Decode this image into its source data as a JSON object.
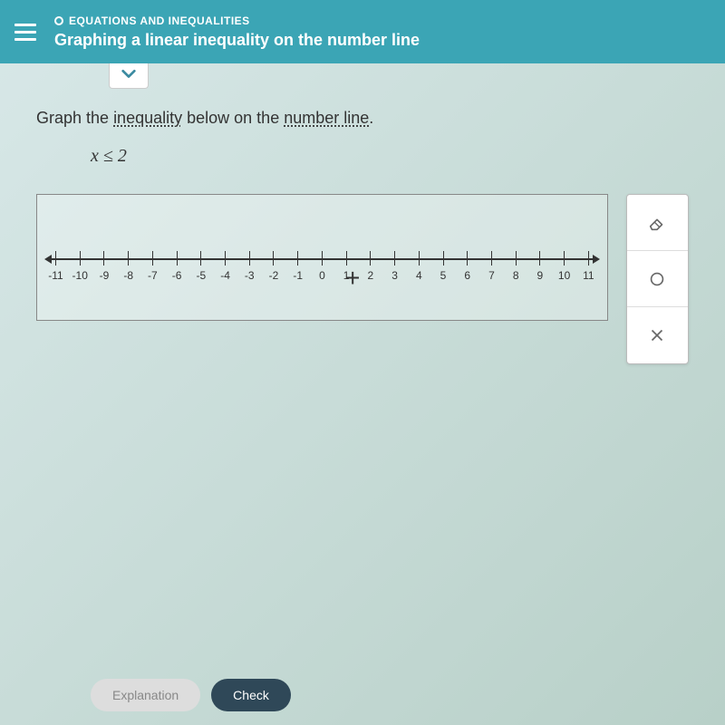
{
  "header": {
    "category": "EQUATIONS AND INEQUALITIES",
    "title": "Graphing a linear inequality on the number line"
  },
  "prompt": {
    "pre": "Graph the ",
    "link1": "inequality",
    "mid": " below on the ",
    "link2": "number line",
    "post": "."
  },
  "inequality": "x ≤ 2",
  "numberline": {
    "ticks": [
      "-11",
      "-10",
      "-9",
      "-8",
      "-7",
      "-6",
      "-5",
      "-4",
      "-3",
      "-2",
      "-1",
      "0",
      "1",
      "2",
      "3",
      "4",
      "5",
      "6",
      "7",
      "8",
      "9",
      "10",
      "11"
    ]
  },
  "tools": {
    "eraser": "eraser",
    "circle": "open-point",
    "x": "clear"
  },
  "buttons": {
    "explanation": "Explanation",
    "check": "Check"
  },
  "colors": {
    "header_bg": "#3ba5b5",
    "accent": "#2f4858"
  }
}
